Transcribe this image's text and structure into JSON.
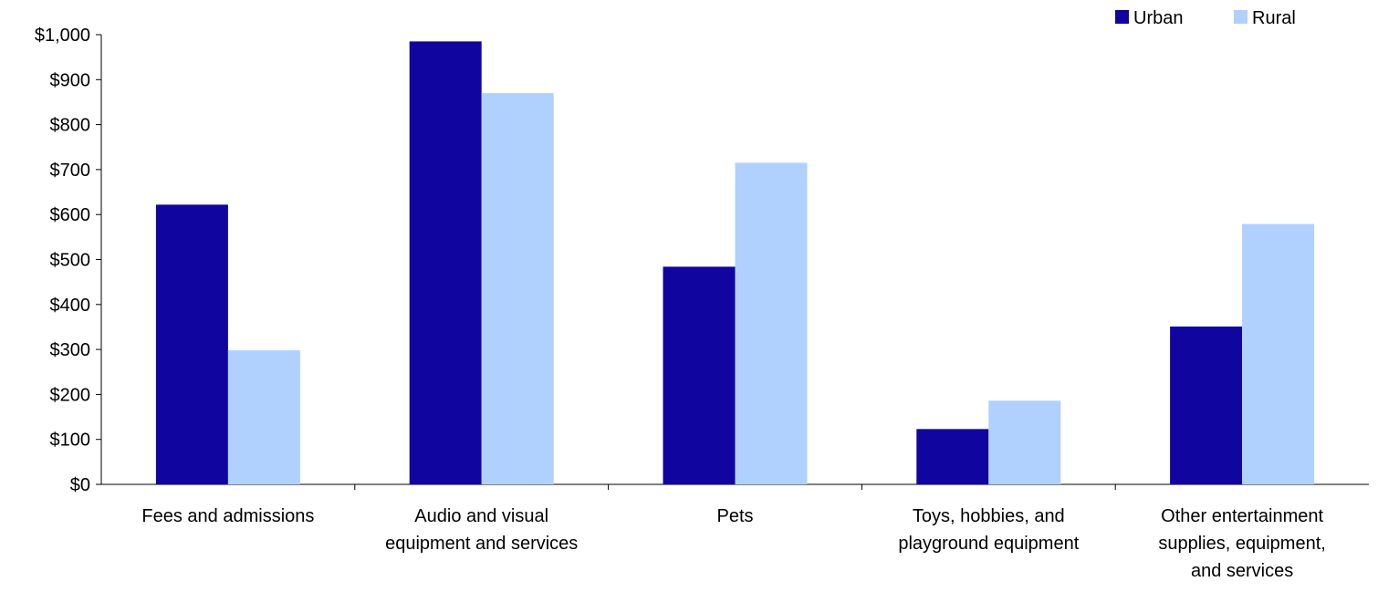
{
  "chart_data": {
    "type": "bar",
    "title": "",
    "xlabel": "",
    "ylabel": "",
    "ylim": [
      0,
      1000
    ],
    "yticks": [
      0,
      100,
      200,
      300,
      400,
      500,
      600,
      700,
      800,
      900,
      1000
    ],
    "ytick_labels": [
      "$0",
      "$100",
      "$200",
      "$300",
      "$400",
      "$500",
      "$600",
      "$700",
      "$800",
      "$900",
      "$1,000"
    ],
    "grid": false,
    "legend_position": "top-right",
    "categories": [
      [
        "Fees and admissions"
      ],
      [
        "Audio and visual",
        "equipment and services"
      ],
      [
        "Pets"
      ],
      [
        "Toys, hobbies, and",
        "playground equipment"
      ],
      [
        "Other entertainment",
        "supplies, equipment,",
        "and services"
      ]
    ],
    "series": [
      {
        "name": "Urban",
        "color": "#10069f",
        "values": [
          622,
          985,
          484,
          123,
          351
        ]
      },
      {
        "name": "Rural",
        "color": "#b0d0fd",
        "values": [
          298,
          870,
          715,
          186,
          579
        ]
      }
    ]
  }
}
